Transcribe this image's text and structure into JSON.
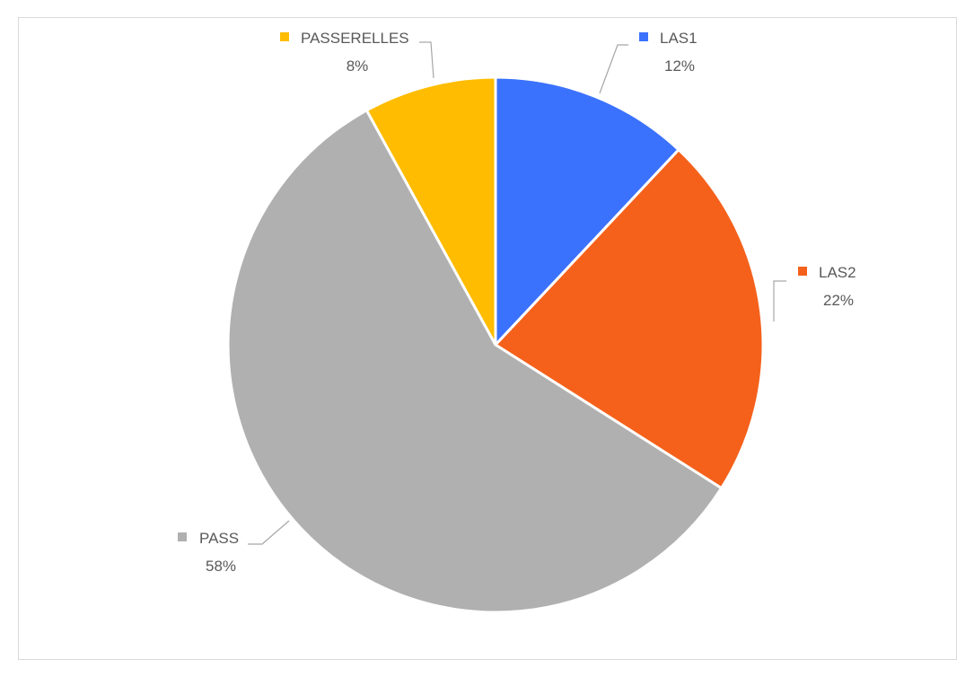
{
  "chart_data": {
    "type": "pie",
    "title": "",
    "slices": [
      {
        "name": "LAS1",
        "value": 12,
        "label": "12%",
        "color": "#3b72fd"
      },
      {
        "name": "LAS2",
        "value": 22,
        "label": "22%",
        "color": "#f5611b"
      },
      {
        "name": "PASS",
        "value": 58,
        "label": "58%",
        "color": "#b0b0b0"
      },
      {
        "name": "PASSERELLES",
        "value": 8,
        "label": "8%",
        "color": "#ffbc00"
      }
    ],
    "start_angle_deg": 0,
    "direction": "clockwise",
    "legend": "none",
    "data_labels": "outside-with-leader-lines"
  }
}
